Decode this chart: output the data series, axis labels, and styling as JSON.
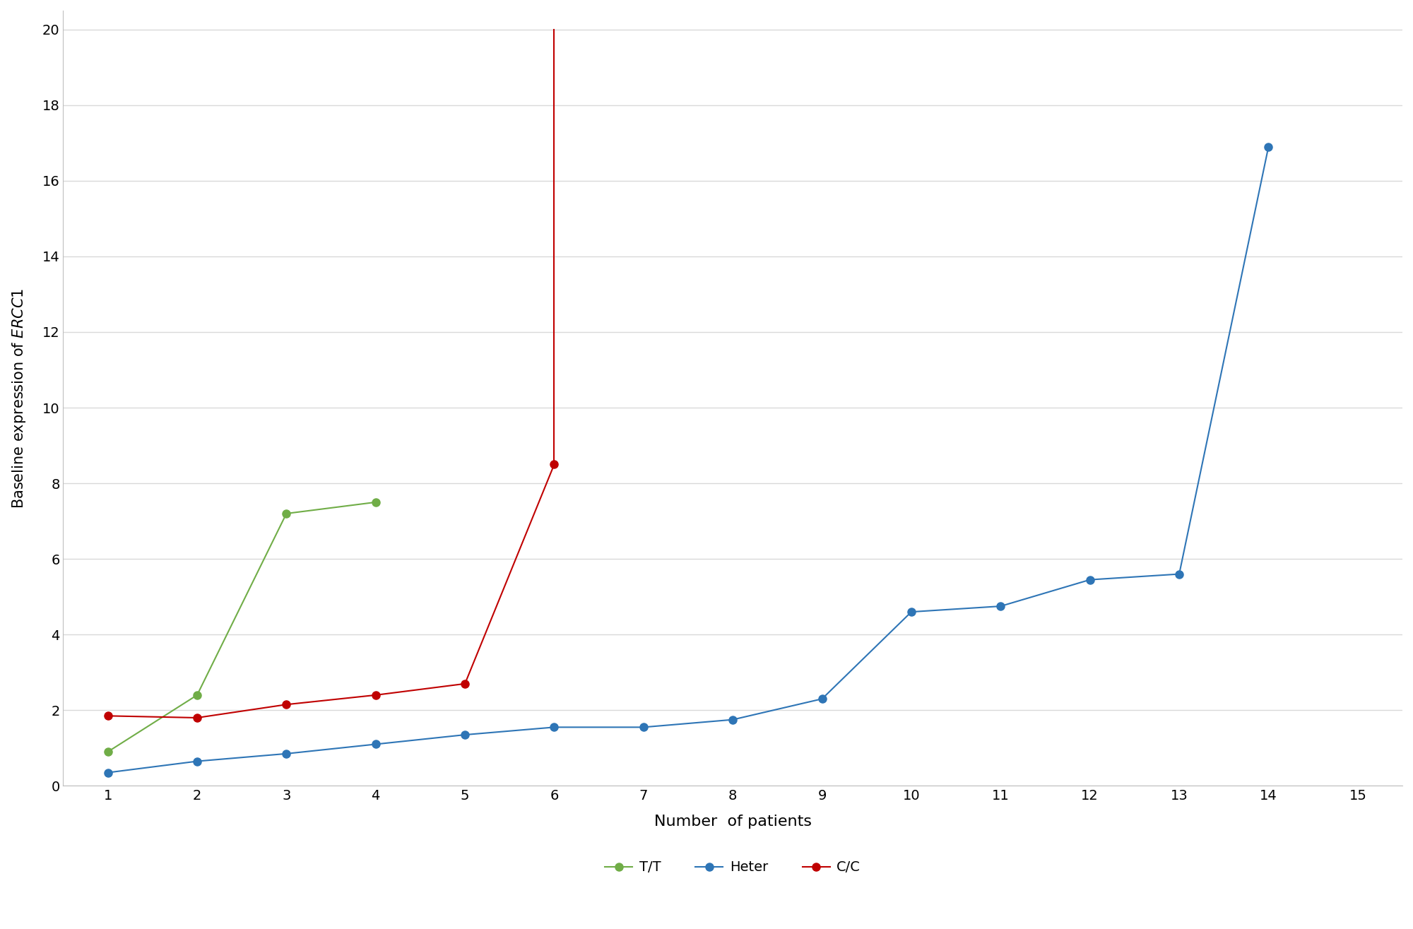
{
  "series": {
    "T/T": {
      "x": [
        1,
        2,
        3,
        4
      ],
      "y": [
        0.9,
        2.4,
        7.2,
        7.5
      ],
      "color": "#70ad47",
      "marker": "o",
      "linewidth": 1.5,
      "markersize": 8
    },
    "Heter": {
      "x": [
        1,
        2,
        3,
        4,
        5,
        6,
        7,
        8,
        9,
        10,
        11,
        12,
        13,
        14
      ],
      "y": [
        0.35,
        0.65,
        0.85,
        1.1,
        1.35,
        1.55,
        1.55,
        1.75,
        2.3,
        4.6,
        4.75,
        5.45,
        5.6,
        16.9
      ],
      "color": "#2e75b6",
      "marker": "o",
      "linewidth": 1.5,
      "markersize": 8
    },
    "C/C": {
      "x": [
        1,
        2,
        3,
        4,
        5,
        6
      ],
      "y": [
        1.85,
        1.8,
        2.15,
        2.4,
        2.7,
        8.5
      ],
      "color": "#c00000",
      "marker": "o",
      "linewidth": 1.5,
      "markersize": 8,
      "extra_line": {
        "x": [
          6,
          6
        ],
        "y": [
          8.5,
          20.0
        ]
      }
    }
  },
  "xlabel": "Number  of patients",
  "xlim": [
    0.5,
    15.5
  ],
  "ylim": [
    0,
    20.5
  ],
  "xticks": [
    1,
    2,
    3,
    4,
    5,
    6,
    7,
    8,
    9,
    10,
    11,
    12,
    13,
    14,
    15
  ],
  "yticks": [
    0,
    2,
    4,
    6,
    8,
    10,
    12,
    14,
    16,
    18,
    20
  ],
  "grid_color": "#d9d9d9",
  "background_color": "#ffffff",
  "legend_order": [
    "T/T",
    "Heter",
    "C/C"
  ],
  "figsize": [
    20.0,
    13.15
  ],
  "dpi": 100
}
